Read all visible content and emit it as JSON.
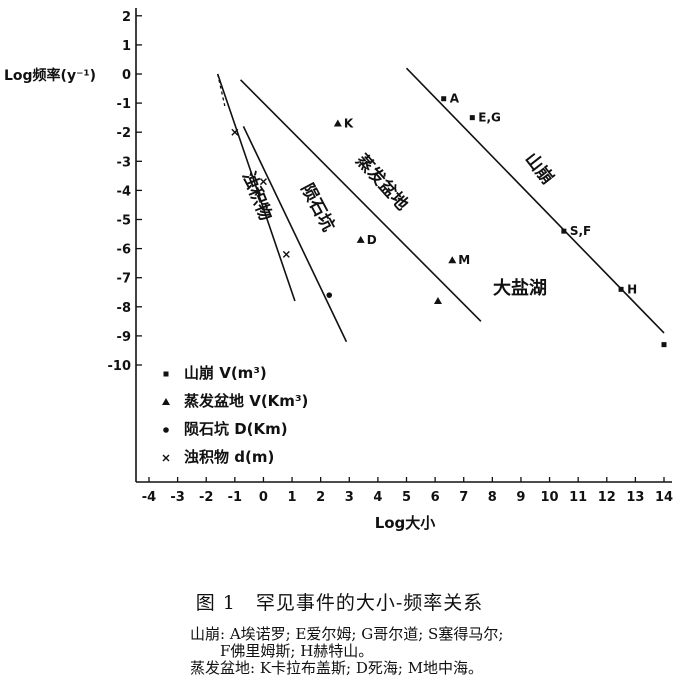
{
  "chart_data": {
    "type": "scatter",
    "title": "",
    "xlabel": "Log大小",
    "ylabel": "Log频率(y⁻¹)",
    "xlim": [
      -4,
      14
    ],
    "ylim": [
      -10,
      2
    ],
    "xticks": [
      "-4",
      "-3",
      "-2",
      "-1",
      "0",
      "1",
      "2",
      "3",
      "4",
      "5",
      "6",
      "7",
      "8",
      "9",
      "10",
      "11",
      "12",
      "13",
      "14"
    ],
    "yticks": [
      "2",
      "1",
      "0",
      "-1",
      "-2",
      "-3",
      "-4",
      "-5",
      "-6",
      "-7",
      "-8",
      "-9",
      "-10"
    ],
    "grid": false,
    "legend_position": "bottom-left",
    "legend": [
      {
        "symbol": "square",
        "text": "山崩 V(m³)"
      },
      {
        "symbol": "triangle",
        "text": "蒸发盆地 V(Km³)"
      },
      {
        "symbol": "circle",
        "text": "陨石坑 D(Km)"
      },
      {
        "symbol": "cross",
        "text": "浊积物 d(m)"
      }
    ],
    "series": [
      {
        "name": "山崩",
        "marker": "square",
        "points": [
          {
            "x": 6.3,
            "y": -0.85,
            "label": "A"
          },
          {
            "x": 7.3,
            "y": -1.5,
            "label": "E,G"
          },
          {
            "x": 10.5,
            "y": -5.4,
            "label": "S,F"
          },
          {
            "x": 12.5,
            "y": -7.4,
            "label": "H"
          },
          {
            "x": 14.0,
            "y": -9.3,
            "label": ""
          }
        ],
        "line": {
          "x": [
            5.0,
            14.0
          ],
          "y": [
            0.2,
            -8.9
          ]
        },
        "line_label": "山崩"
      },
      {
        "name": "蒸发盆地",
        "marker": "triangle",
        "points": [
          {
            "x": 2.6,
            "y": -1.7,
            "label": "K"
          },
          {
            "x": 3.4,
            "y": -5.7,
            "label": "D"
          },
          {
            "x": 6.6,
            "y": -6.4,
            "label": "M"
          },
          {
            "x": 6.1,
            "y": -7.8,
            "label": ""
          }
        ],
        "line": {
          "x": [
            -0.8,
            7.6
          ],
          "y": [
            -0.2,
            -8.5
          ]
        },
        "line_label": "蒸发盆地",
        "annotation": "大盐湖"
      },
      {
        "name": "陨石坑",
        "marker": "circle",
        "points": [
          {
            "x": 2.3,
            "y": -7.6,
            "label": ""
          }
        ],
        "line": {
          "x": [
            -0.7,
            2.9
          ],
          "y": [
            -1.8,
            -9.2
          ]
        },
        "line_label": "陨石坑"
      },
      {
        "name": "浊积物",
        "marker": "cross",
        "points": [
          {
            "x": -1.0,
            "y": -2.0,
            "label": ""
          },
          {
            "x": 0.0,
            "y": -3.7,
            "label": ""
          },
          {
            "x": 0.8,
            "y": -6.2,
            "label": ""
          }
        ],
        "line": {
          "x": [
            -1.6,
            1.1
          ],
          "y": [
            0.0,
            -7.8
          ]
        },
        "line_label": "浊积物"
      }
    ]
  },
  "caption": "图 1　罕见事件的大小-频率关系",
  "notes": [
    "山崩:  A埃诺罗; E爱尔姆; G哥尔道; S塞得马尔;",
    "　　F佛里姆斯; H赫特山。",
    "蒸发盆地:  K卡拉布盖斯; D死海; M地中海。"
  ]
}
